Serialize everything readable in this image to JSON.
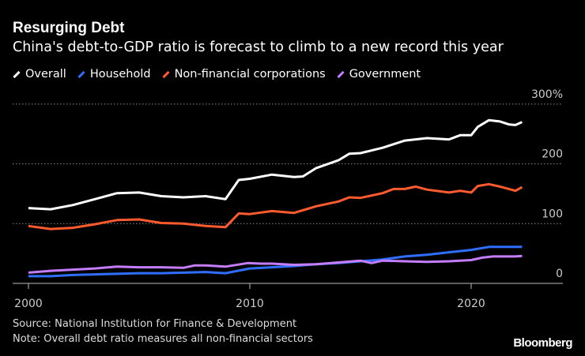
{
  "chart_data": {
    "type": "line",
    "title": "Resurging Debt",
    "subtitle": "China's debt-to-GDP ratio is forecast to climb to a new record this year",
    "ylim": [
      0,
      300
    ],
    "y_ticks": [
      "0",
      "100",
      "200",
      "300%"
    ],
    "x_ticks": [
      "2000",
      "2010",
      "2020"
    ],
    "grid": true,
    "legend_position": "top",
    "series": [
      {
        "name": "Overall",
        "color": "#ffffff",
        "x": [
          2000,
          2001,
          2002,
          2003,
          2004,
          2005,
          2006,
          2007,
          2008,
          2008.9,
          2009.5,
          2010,
          2011,
          2012,
          2012.4,
          2013,
          2014,
          2014.5,
          2015,
          2016,
          2017,
          2018,
          2019,
          2019.5,
          2020,
          2020.3,
          2020.8,
          2021.3,
          2021.7,
          2022,
          2022.3
        ],
        "values": [
          126,
          124,
          131,
          141,
          151,
          152,
          146,
          144,
          146,
          141,
          173,
          175,
          182,
          178,
          179,
          193,
          206,
          217,
          218,
          227,
          239,
          243,
          241,
          248,
          248,
          262,
          273,
          271,
          266,
          265,
          270
        ]
      },
      {
        "name": "Household",
        "color": "#2f6fff",
        "x": [
          2000,
          2001,
          2002,
          2003,
          2004,
          2005,
          2006,
          2007,
          2008,
          2008.9,
          2010,
          2011,
          2012,
          2013,
          2014,
          2015,
          2016,
          2017,
          2018,
          2019,
          2020,
          2020.8,
          2022.3
        ],
        "values": [
          12,
          12,
          14,
          15,
          16,
          17,
          17,
          18,
          19,
          17,
          25,
          27,
          29,
          32,
          34,
          37,
          40,
          45,
          48,
          52,
          56,
          61,
          61
        ]
      },
      {
        "name": "Non-financial corporations",
        "color": "#ff5b2e",
        "x": [
          2000,
          2001,
          2002,
          2003,
          2004,
          2005,
          2006,
          2007,
          2008,
          2008.9,
          2009.5,
          2010,
          2011,
          2012,
          2013,
          2014,
          2014.5,
          2015,
          2016,
          2016.5,
          2017,
          2017.5,
          2018,
          2019,
          2019.5,
          2020,
          2020.3,
          2020.8,
          2021.3,
          2021.7,
          2022,
          2022.3
        ],
        "values": [
          96,
          91,
          93,
          99,
          106,
          107,
          101,
          100,
          96,
          94,
          117,
          116,
          121,
          118,
          129,
          137,
          144,
          143,
          151,
          158,
          158,
          162,
          157,
          152,
          155,
          152,
          163,
          166,
          162,
          158,
          155,
          161
        ]
      },
      {
        "name": "Government",
        "color": "#c57dff",
        "x": [
          2000,
          2001,
          2002,
          2003,
          2004,
          2005,
          2006,
          2007,
          2007.5,
          2008,
          2008.9,
          2009.9,
          2010.5,
          2011,
          2012,
          2013,
          2014,
          2015,
          2015.5,
          2016,
          2017,
          2018,
          2019,
          2020,
          2020.5,
          2021,
          2022,
          2022.3
        ],
        "values": [
          18,
          21,
          23,
          25,
          28,
          27,
          27,
          26,
          30,
          30,
          28,
          34,
          33,
          33,
          31,
          32,
          35,
          38,
          34,
          38,
          37,
          36,
          37,
          39,
          43,
          45,
          45,
          46
        ]
      }
    ]
  },
  "footer": {
    "source": "Source: National Institution for Finance & Development",
    "note": "Note: Overall debt ratio measures all non-financial sectors",
    "brand": "Bloomberg"
  }
}
